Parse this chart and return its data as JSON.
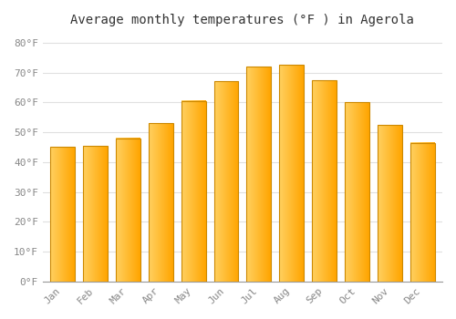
{
  "title": "Average monthly temperatures (°F ) in Agerola",
  "months": [
    "Jan",
    "Feb",
    "Mar",
    "Apr",
    "May",
    "Jun",
    "Jul",
    "Aug",
    "Sep",
    "Oct",
    "Nov",
    "Dec"
  ],
  "values": [
    45,
    45.5,
    48,
    53,
    60.5,
    67,
    72,
    72.5,
    67.5,
    60,
    52.5,
    46.5
  ],
  "bar_color_left": "#FFD060",
  "bar_color_right": "#FFA500",
  "bar_edge_color": "#CC8800",
  "background_color": "#FFFFFF",
  "grid_color": "#E0E0E0",
  "tick_label_color": "#888888",
  "title_color": "#333333",
  "ytick_labels": [
    "0°F",
    "10°F",
    "20°F",
    "30°F",
    "40°F",
    "50°F",
    "60°F",
    "70°F",
    "80°F"
  ],
  "ytick_values": [
    0,
    10,
    20,
    30,
    40,
    50,
    60,
    70,
    80
  ],
  "ylim": [
    0,
    83
  ],
  "bar_width": 0.75
}
